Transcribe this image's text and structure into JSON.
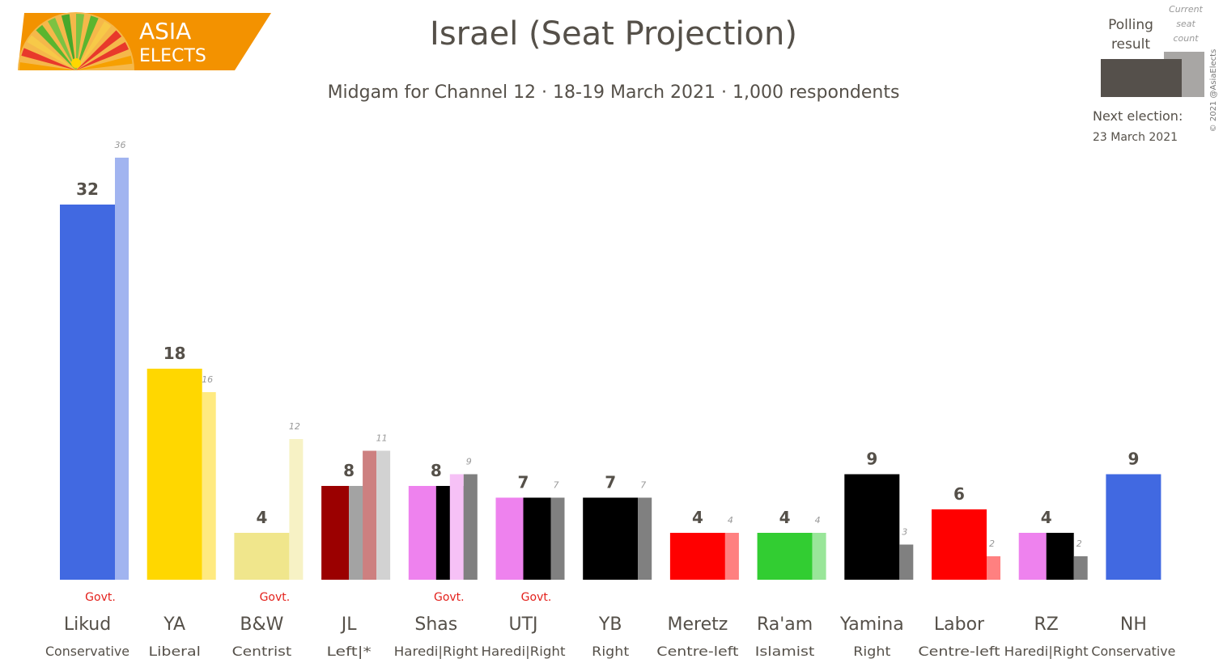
{
  "brand": {
    "line1": "ASIA",
    "line2": "ELECTS"
  },
  "legend": {
    "polling_label_1": "Polling",
    "polling_label_2": "result",
    "current_label_1": "Current",
    "current_label_2": "seat",
    "current_label_3": "count",
    "next_election_label": "Next election:",
    "next_election_date": "23 March 2021"
  },
  "copyright": "© 2021 @AsiaElects",
  "colors": {
    "text": "#555049",
    "govt": "#e3211c"
  },
  "chart_data": {
    "type": "bar",
    "title": "Israel (Seat Projection)",
    "subtitle": "Midgam for Channel 12 · 18-19 March 2021 · 1,000 respondents",
    "ylim": [
      0,
      36
    ],
    "govt_label": "Govt.",
    "parties": [
      {
        "name": "Likud",
        "ideology": "Conservative",
        "poll": 32,
        "current": 36,
        "govt": true,
        "poll_colors": [
          "#4169e1"
        ],
        "current_colors": [
          "#a1b4f0"
        ]
      },
      {
        "name": "YA",
        "ideology": "Liberal",
        "poll": 18,
        "current": 16,
        "govt": false,
        "poll_colors": [
          "#ffd700"
        ],
        "current_colors": [
          "#ffea80"
        ]
      },
      {
        "name": "B&W",
        "ideology": "Centrist",
        "poll": 4,
        "current": 12,
        "govt": true,
        "poll_colors": [
          "#f0e68c"
        ],
        "current_colors": [
          "#f7f2c5"
        ]
      },
      {
        "name": "JL",
        "ideology": "Left|*",
        "poll": 8,
        "current": 11,
        "govt": false,
        "poll_colors": [
          "#9b0000",
          "#a3a3a3"
        ],
        "current_colors": [
          "#cd8080",
          "#d2d2d2"
        ]
      },
      {
        "name": "Shas",
        "ideology": "Haredi|Right",
        "poll": 8,
        "current": 9,
        "govt": true,
        "poll_colors": [
          "#ee82ee",
          "#000000"
        ],
        "current_colors": [
          "#f6c1f6",
          "#808080"
        ]
      },
      {
        "name": "UTJ",
        "ideology": "Haredi|Right",
        "poll": 7,
        "current": 7,
        "govt": true,
        "poll_colors": [
          "#ee82ee",
          "#000000"
        ],
        "current_colors": [
          "#808080"
        ]
      },
      {
        "name": "YB",
        "ideology": "Right",
        "poll": 7,
        "current": 7,
        "govt": false,
        "poll_colors": [
          "#000000"
        ],
        "current_colors": [
          "#808080"
        ]
      },
      {
        "name": "Meretz",
        "ideology": "Centre-left",
        "poll": 4,
        "current": 4,
        "govt": false,
        "poll_colors": [
          "#ff0000"
        ],
        "current_colors": [
          "#ff8080"
        ]
      },
      {
        "name": "Ra'am",
        "ideology": "Islamist",
        "poll": 4,
        "current": 4,
        "govt": false,
        "poll_colors": [
          "#32cd32"
        ],
        "current_colors": [
          "#99e699"
        ]
      },
      {
        "name": "Yamina",
        "ideology": "Right",
        "poll": 9,
        "current": 3,
        "govt": false,
        "poll_colors": [
          "#000000"
        ],
        "current_colors": [
          "#808080"
        ]
      },
      {
        "name": "Labor",
        "ideology": "Centre-left",
        "poll": 6,
        "current": 2,
        "govt": false,
        "poll_colors": [
          "#ff0000"
        ],
        "current_colors": [
          "#ff8080"
        ]
      },
      {
        "name": "RZ",
        "ideology": "Haredi|Right",
        "poll": 4,
        "current": 2,
        "govt": false,
        "poll_colors": [
          "#ee82ee",
          "#000000"
        ],
        "current_colors": [
          "#808080"
        ]
      },
      {
        "name": "NH",
        "ideology": "Conservative",
        "poll": 9,
        "current": null,
        "govt": false,
        "poll_colors": [
          "#4169e1"
        ],
        "current_colors": []
      }
    ]
  }
}
